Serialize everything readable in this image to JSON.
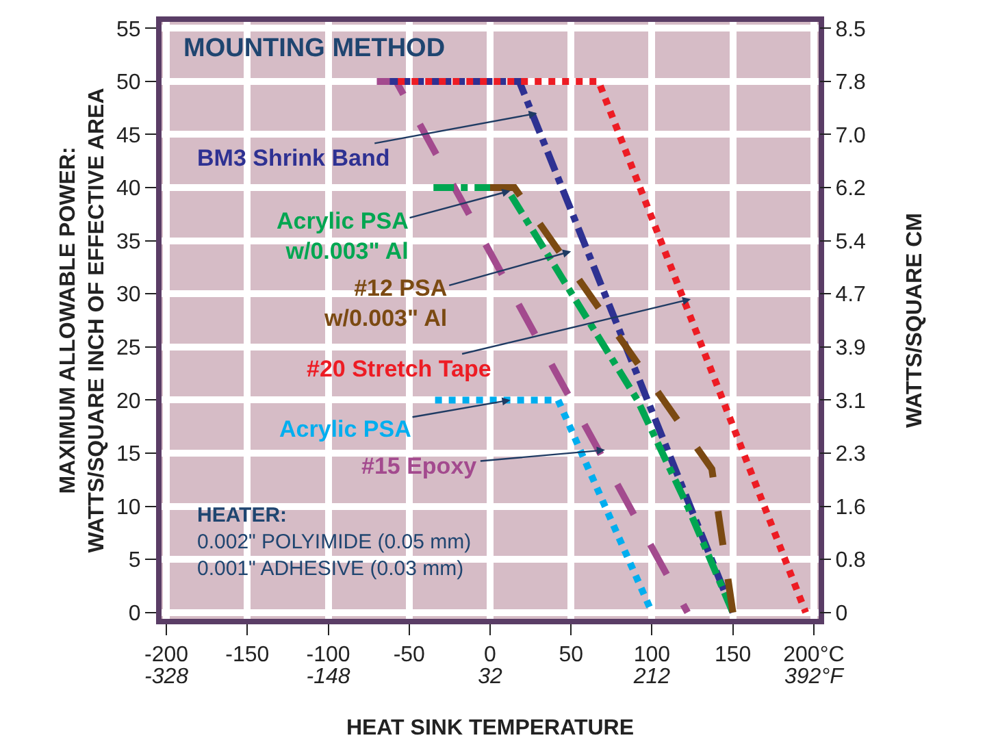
{
  "chart_data": {
    "type": "line",
    "title": "MOUNTING METHOD",
    "xlabel": "HEAT SINK TEMPERATURE",
    "ylabel": "MAXIMUM ALLOWABLE POWER:\nWATTS/SQUARE INCH OF EFFECTIVE AREA",
    "y2label": "WATTS/SQUARE CM",
    "series": [
      {
        "name": "#15 Epoxy",
        "color": "#a34a8e",
        "line_style": "dashed",
        "x": [
          -70,
          -58,
          122
        ],
        "values": [
          50,
          50,
          0
        ]
      },
      {
        "name": "BM3 Shrink Band",
        "color": "#2e3192",
        "line_style": "dashdot",
        "x": [
          -62,
          18,
          150
        ],
        "values": [
          50,
          50,
          0
        ]
      },
      {
        "name": "Acrylic PSA\nw/0.003\" Al",
        "color": "#00a651",
        "line_style": "dashdot",
        "x": [
          -35,
          10,
          91,
          122,
          150
        ],
        "values": [
          40,
          40,
          20,
          10,
          0
        ]
      },
      {
        "name": "#12 PSA\nw/0.003\" Al",
        "color": "#7b4a12",
        "line_style": "dashed",
        "x": [
          0,
          15,
          137,
          150
        ],
        "values": [
          40,
          40,
          13.5,
          0
        ]
      },
      {
        "name": "#20 Stretch Tape",
        "color": "#ed1c24",
        "line_style": "dotted",
        "x": [
          -57,
          67,
          195
        ],
        "values": [
          50,
          50,
          0
        ]
      },
      {
        "name": "Acrylic PSA",
        "color": "#00aeef",
        "line_style": "dotted",
        "x": [
          -34,
          42,
          100
        ],
        "values": [
          20,
          20,
          0
        ]
      }
    ],
    "annotations": [
      "HEATER:\n0.002\" POLYIMIDE (0.05 mm)\n0.001\" ADHESIVE (0.03 mm)"
    ],
    "xlim": [
      -203,
      203
    ],
    "xticks": [
      -200,
      -150,
      -100,
      -50,
      0,
      50,
      100,
      150,
      {
        "value": 200,
        "label": "200°C"
      }
    ],
    "x2lim": [
      -333.4,
      397.4
    ],
    "x2ticks": [
      -328,
      -148,
      32,
      212,
      {
        "value": 392,
        "label": "392°F"
      }
    ],
    "ylim": [
      -0.6,
      55.6
    ],
    "yticks": [
      0,
      5,
      10,
      15,
      20,
      25,
      30,
      35,
      40,
      45,
      50,
      55
    ],
    "y2lim": [
      -0.093,
      8.618
    ],
    "y2ticks": [
      0,
      {
        "value": 0.775,
        "label": "0.8"
      },
      {
        "value": 1.55,
        "label": "1.6"
      },
      {
        "value": 2.325,
        "label": "2.3"
      },
      {
        "value": 3.1,
        "label": "3.1"
      },
      {
        "value": 3.875,
        "label": "3.9"
      },
      {
        "value": 4.65,
        "label": "4.7"
      },
      {
        "value": 5.425,
        "label": "5.4"
      },
      {
        "value": 6.2,
        "label": "6.2"
      },
      {
        "value": 6.975,
        "label": "7.0"
      },
      {
        "value": 7.75,
        "label": "7.8"
      },
      {
        "value": 8.525,
        "label": "8.5"
      }
    ],
    "grid": true,
    "legend": false
  }
}
